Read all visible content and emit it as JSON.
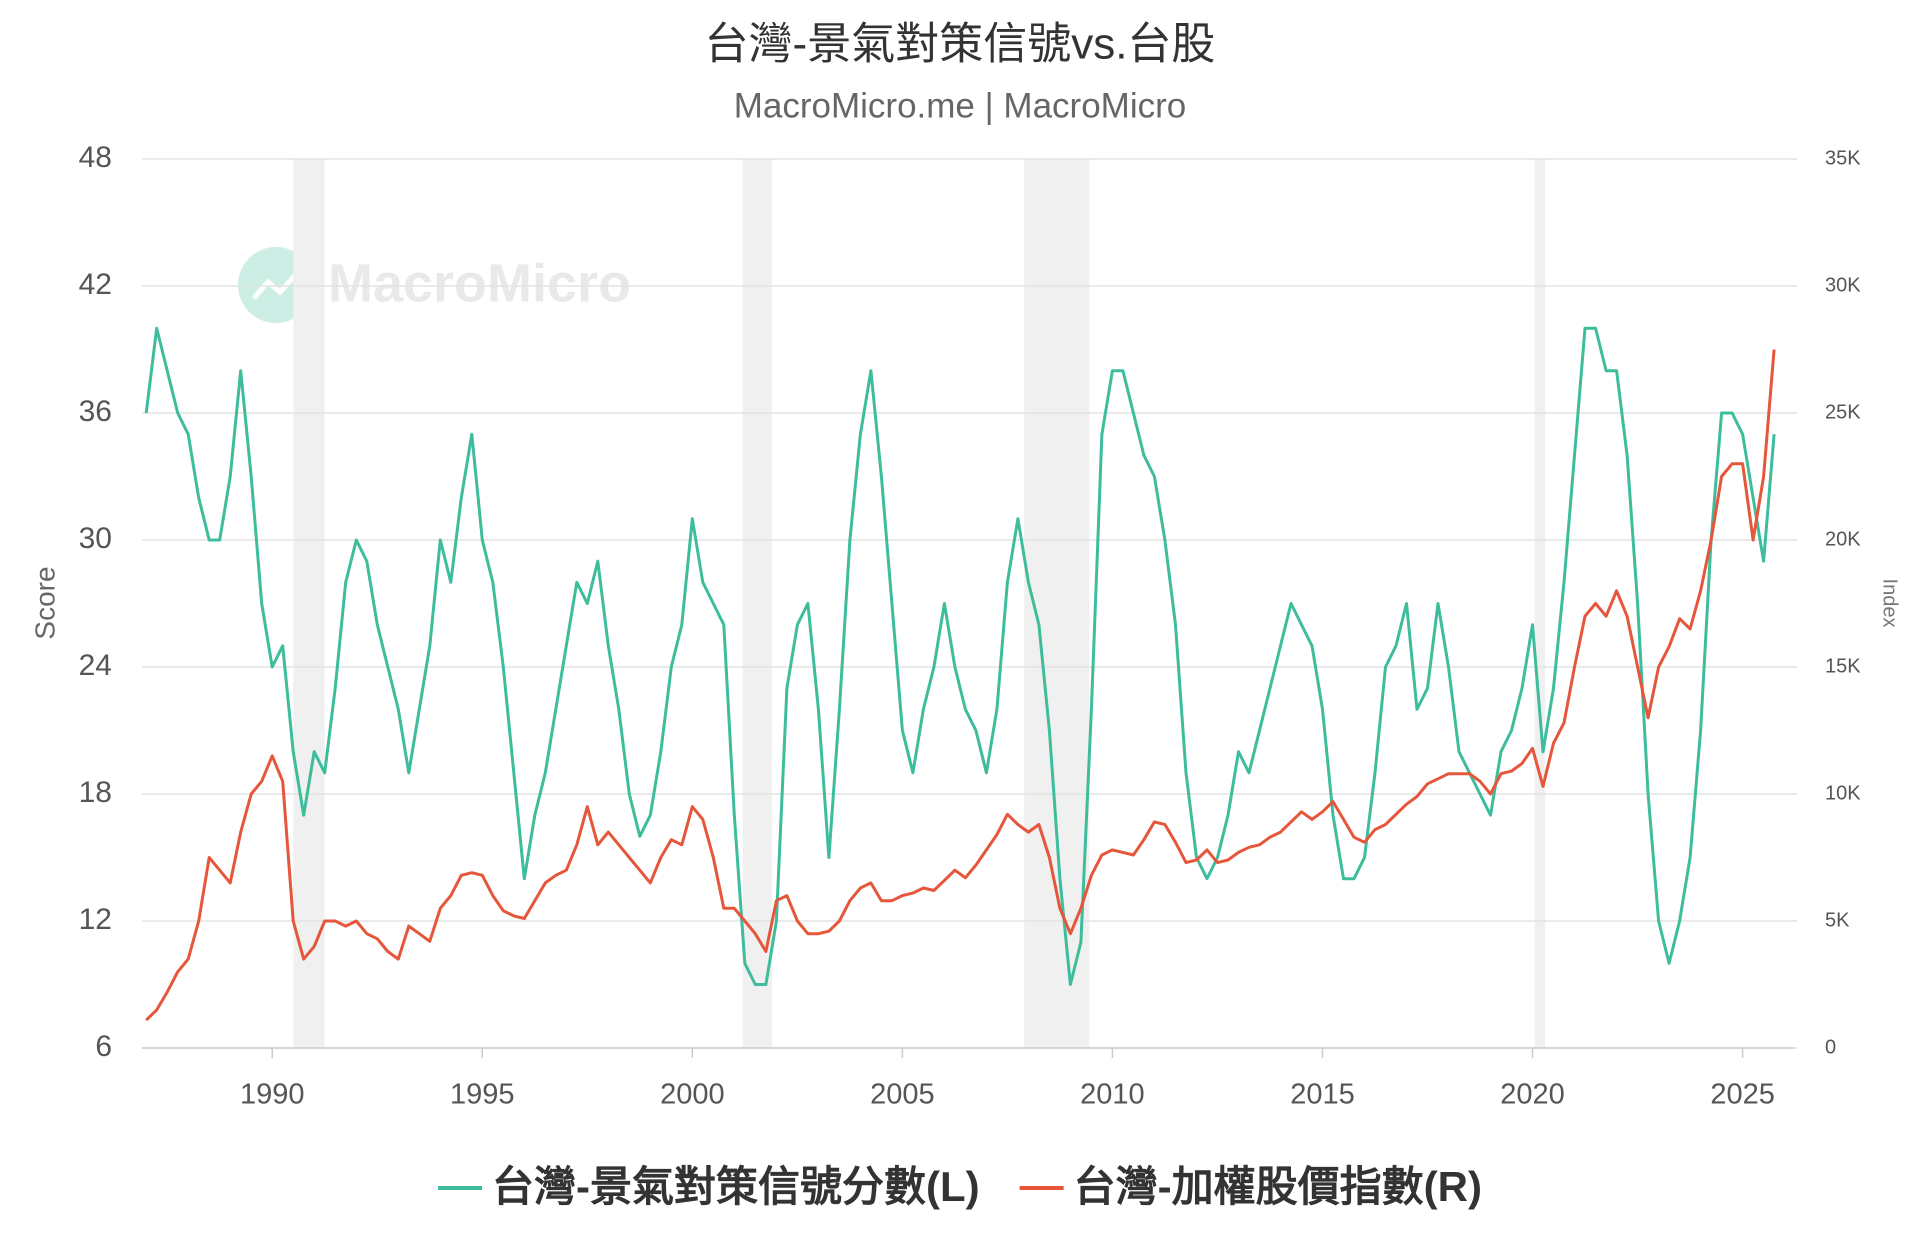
{
  "chart_data": {
    "type": "line",
    "title": "台灣-景氣對策信號vs.台股",
    "subtitle": "MacroMicro.me | MacroMicro",
    "watermark": "MacroMicro",
    "y_label": "Score",
    "y2_label": "Index",
    "xlim": [
      1986.9,
      2026.2
    ],
    "xticks": [
      1990,
      1995,
      2000,
      2005,
      2010,
      2015,
      2020,
      2025
    ],
    "ylim": [
      6,
      48
    ],
    "yticks": [
      6,
      12,
      18,
      24,
      30,
      36,
      42,
      48
    ],
    "y2lim": [
      0,
      35000
    ],
    "y2ticks": [
      {
        "value": 0,
        "label": "0"
      },
      {
        "value": 5000,
        "label": "5K"
      },
      {
        "value": 10000,
        "label": "10K"
      },
      {
        "value": 15000,
        "label": "15K"
      },
      {
        "value": 20000,
        "label": "20K"
      },
      {
        "value": 25000,
        "label": "25K"
      },
      {
        "value": 30000,
        "label": "30K"
      },
      {
        "value": 35000,
        "label": "35K"
      }
    ],
    "grid": true,
    "recessions": [
      [
        1990.5,
        1991.25
      ],
      [
        2001.2,
        2001.9
      ],
      [
        2007.9,
        2009.45
      ],
      [
        2020.05,
        2020.3
      ]
    ],
    "recession_color": "#f0f0f0",
    "x": [
      1987,
      1987.25,
      1987.5,
      1987.75,
      1988,
      1988.25,
      1988.5,
      1988.75,
      1989,
      1989.25,
      1989.5,
      1989.75,
      1990,
      1990.25,
      1990.5,
      1990.75,
      1991,
      1991.25,
      1991.5,
      1991.75,
      1992,
      1992.25,
      1992.5,
      1992.75,
      1993,
      1993.25,
      1993.5,
      1993.75,
      1994,
      1994.25,
      1994.5,
      1994.75,
      1995,
      1995.25,
      1995.5,
      1995.75,
      1996,
      1996.25,
      1996.5,
      1996.75,
      1997,
      1997.25,
      1997.5,
      1997.75,
      1998,
      1998.25,
      1998.5,
      1998.75,
      1999,
      1999.25,
      1999.5,
      1999.75,
      2000,
      2000.25,
      2000.5,
      2000.75,
      2001,
      2001.25,
      2001.5,
      2001.75,
      2002,
      2002.25,
      2002.5,
      2002.75,
      2003,
      2003.25,
      2003.5,
      2003.75,
      2004,
      2004.25,
      2004.5,
      2004.75,
      2005,
      2005.25,
      2005.5,
      2005.75,
      2006,
      2006.25,
      2006.5,
      2006.75,
      2007,
      2007.25,
      2007.5,
      2007.75,
      2008,
      2008.25,
      2008.5,
      2008.75,
      2009,
      2009.25,
      2009.5,
      2009.75,
      2010,
      2010.25,
      2010.5,
      2010.75,
      2011,
      2011.25,
      2011.5,
      2011.75,
      2012,
      2012.25,
      2012.5,
      2012.75,
      2013,
      2013.25,
      2013.5,
      2013.75,
      2014,
      2014.25,
      2014.5,
      2014.75,
      2015,
      2015.25,
      2015.5,
      2015.75,
      2016,
      2016.25,
      2016.5,
      2016.75,
      2017,
      2017.25,
      2017.5,
      2017.75,
      2018,
      2018.25,
      2018.5,
      2018.75,
      2019,
      2019.25,
      2019.5,
      2019.75,
      2020,
      2020.25,
      2020.5,
      2020.75,
      2021,
      2021.25,
      2021.5,
      2021.75,
      2022,
      2022.25,
      2022.5,
      2022.75,
      2023,
      2023.25,
      2023.5,
      2023.75,
      2024,
      2024.25,
      2024.5,
      2024.75,
      2025,
      2025.25,
      2025.5,
      2025.75
    ],
    "series": [
      {
        "name": "台灣-景氣對策信號分數(L)",
        "color": "#3dbd9c",
        "axis": "y",
        "values": [
          36,
          40,
          38,
          36,
          35,
          32,
          30,
          30,
          33,
          38,
          33,
          27,
          24,
          25,
          20,
          17,
          20,
          19,
          23,
          28,
          30,
          29,
          26,
          24,
          22,
          19,
          22,
          25,
          30,
          28,
          32,
          35,
          30,
          28,
          24,
          19,
          14,
          17,
          19,
          22,
          25,
          28,
          27,
          29,
          25,
          22,
          18,
          16,
          17,
          20,
          24,
          26,
          31,
          28,
          27,
          26,
          17,
          10,
          9,
          9,
          12,
          23,
          26,
          27,
          22,
          15,
          22,
          30,
          35,
          38,
          33,
          27,
          21,
          19,
          22,
          24,
          27,
          24,
          22,
          21,
          19,
          22,
          28,
          31,
          28,
          26,
          21,
          14,
          9,
          11,
          22,
          35,
          38,
          38,
          36,
          34,
          33,
          30,
          26,
          19,
          15,
          14,
          15,
          17,
          20,
          19,
          21,
          23,
          25,
          27,
          26,
          25,
          22,
          17,
          14,
          14,
          15,
          19,
          24,
          25,
          27,
          22,
          23,
          27,
          24,
          20,
          19,
          18,
          17,
          20,
          21,
          23,
          26,
          20,
          23,
          28,
          34,
          40,
          40,
          38,
          38,
          34,
          27,
          18,
          12,
          10,
          12,
          15,
          21,
          30,
          36,
          36,
          35,
          32,
          29,
          35
        ]
      },
      {
        "name": "台灣-加權股價指數(R)",
        "color": "#e5563a",
        "axis": "y2",
        "values": [
          1100,
          1500,
          2200,
          3000,
          3500,
          5000,
          7500,
          7000,
          6500,
          8500,
          10000,
          10500,
          11500,
          10500,
          5000,
          3500,
          4000,
          5000,
          5000,
          4800,
          5000,
          4500,
          4300,
          3800,
          3500,
          4800,
          4500,
          4200,
          5500,
          6000,
          6800,
          6900,
          6800,
          6000,
          5400,
          5200,
          5100,
          5800,
          6500,
          6800,
          7000,
          8000,
          9500,
          8000,
          8500,
          8000,
          7500,
          7000,
          6500,
          7500,
          8200,
          8000,
          9500,
          9000,
          7500,
          5500,
          5500,
          5000,
          4500,
          3800,
          5800,
          6000,
          5000,
          4500,
          4500,
          4600,
          5000,
          5800,
          6300,
          6500,
          5800,
          5800,
          6000,
          6100,
          6300,
          6200,
          6600,
          7000,
          6700,
          7200,
          7800,
          8400,
          9200,
          8800,
          8500,
          8800,
          7500,
          5500,
          4500,
          5500,
          6800,
          7600,
          7800,
          7700,
          7600,
          8200,
          8900,
          8800,
          8100,
          7300,
          7400,
          7800,
          7300,
          7400,
          7700,
          7900,
          8000,
          8300,
          8500,
          8900,
          9300,
          9000,
          9300,
          9700,
          9000,
          8300,
          8100,
          8600,
          8800,
          9200,
          9600,
          9900,
          10400,
          10600,
          10800,
          10800,
          10800,
          10500,
          10000,
          10800,
          10900,
          11200,
          11800,
          10300,
          12000,
          12800,
          15000,
          17000,
          17500,
          17000,
          18000,
          17000,
          15000,
          13000,
          15000,
          15800,
          16900,
          16500,
          18000,
          20000,
          22500,
          23000,
          23000,
          20000,
          22500,
          27500
        ]
      }
    ]
  }
}
